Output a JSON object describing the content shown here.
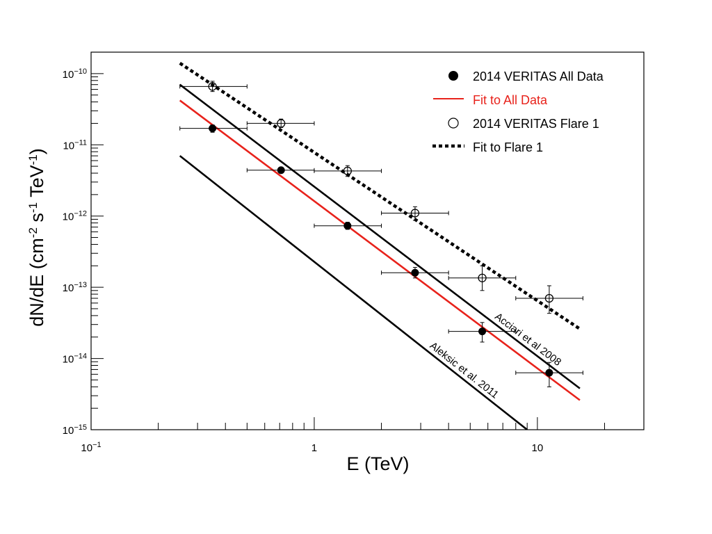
{
  "chart_data": {
    "type": "scatter",
    "title": "",
    "xlabel": "E (TeV)",
    "ylabel": {
      "base": "dN/dE (cm",
      "exp1": "-2",
      "mid1": " s",
      "exp2": "-1",
      "mid2": " TeV",
      "exp3": "-1",
      "end": ")"
    },
    "x_scale": "log",
    "y_scale": "log",
    "xlim": [
      0.1,
      30
    ],
    "ylim": [
      1e-15,
      2e-10
    ],
    "x_ticks": [
      {
        "value": 0.1,
        "base": "10",
        "exp": "−1"
      },
      {
        "value": 1,
        "base": "1",
        "exp": ""
      },
      {
        "value": 10,
        "base": "10",
        "exp": ""
      }
    ],
    "y_ticks": [
      {
        "value": 1e-10,
        "base": "10",
        "exp": "−10"
      },
      {
        "value": 1e-11,
        "base": "10",
        "exp": "−11"
      },
      {
        "value": 1e-12,
        "base": "10",
        "exp": "−12"
      },
      {
        "value": 1e-13,
        "base": "10",
        "exp": "−13"
      },
      {
        "value": 1e-14,
        "base": "10",
        "exp": "−14"
      },
      {
        "value": 1e-15,
        "base": "10",
        "exp": "−15"
      }
    ],
    "grid": false,
    "legend_position": "top-right",
    "legend": [
      {
        "label": "2014 VERITAS All Data",
        "marker": "filled-circle",
        "color": "#000000"
      },
      {
        "label": "Fit to All Data",
        "marker": "solid-line",
        "color": "#e8221b"
      },
      {
        "label": "2014 VERITAS Flare 1",
        "marker": "open-circle",
        "color": "#000000"
      },
      {
        "label": "Fit to Flare 1",
        "marker": "dotted-line",
        "color": "#000000"
      }
    ],
    "series": [
      {
        "name": "2014 VERITAS All Data",
        "kind": "points",
        "marker": "filled",
        "color": "#000000",
        "points": [
          {
            "x": 0.35,
            "y": 1.7e-11,
            "xerr": [
              0.25,
              0.5
            ],
            "yerr": [
              1.5e-11,
              1.9e-11
            ]
          },
          {
            "x": 0.71,
            "y": 4.4e-12,
            "xerr": [
              0.5,
              1.0
            ],
            "yerr": [
              4.1e-12,
              4.7e-12
            ]
          },
          {
            "x": 1.41,
            "y": 7.3e-13,
            "xerr": [
              1.0,
              2.0
            ],
            "yerr": [
              6.5e-13,
              8.2e-13
            ]
          },
          {
            "x": 2.83,
            "y": 1.6e-13,
            "xerr": [
              2.0,
              4.0
            ],
            "yerr": [
              1.35e-13,
              1.9e-13
            ]
          },
          {
            "x": 5.66,
            "y": 2.4e-14,
            "xerr": [
              4.0,
              8.0
            ],
            "yerr": [
              1.7e-14,
              3.2e-14
            ]
          },
          {
            "x": 11.3,
            "y": 6.3e-15,
            "xerr": [
              8.0,
              16.0
            ],
            "yerr": [
              4e-15,
              8.8e-15
            ]
          }
        ]
      },
      {
        "name": "2014 VERITAS Flare 1",
        "kind": "points",
        "marker": "open",
        "color": "#000000",
        "points": [
          {
            "x": 0.35,
            "y": 6.6e-11,
            "xerr": [
              0.25,
              0.5
            ],
            "yerr": [
              5.6e-11,
              7.8e-11
            ]
          },
          {
            "x": 0.71,
            "y": 2e-11,
            "xerr": [
              0.5,
              1.0
            ],
            "yerr": [
              1.75e-11,
              2.3e-11
            ]
          },
          {
            "x": 1.41,
            "y": 4.3e-12,
            "xerr": [
              1.0,
              2.0
            ],
            "yerr": [
              3.6e-12,
              5.1e-12
            ]
          },
          {
            "x": 2.83,
            "y": 1.1e-12,
            "xerr": [
              2.0,
              4.0
            ],
            "yerr": [
              8.7e-13,
              1.35e-12
            ]
          },
          {
            "x": 5.66,
            "y": 1.35e-13,
            "xerr": [
              4.0,
              8.0
            ],
            "yerr": [
              9e-14,
              2e-13
            ]
          },
          {
            "x": 11.3,
            "y": 7e-14,
            "xerr": [
              8.0,
              16.0
            ],
            "yerr": [
              4.3e-14,
              1.05e-13
            ]
          }
        ]
      },
      {
        "name": "Fit to All Data",
        "kind": "line",
        "style": "solid",
        "color": "#e8221b",
        "x": [
          0.25,
          15.5
        ],
        "y": [
          4.2e-11,
          2.6e-15
        ]
      },
      {
        "name": "Fit to Flare 1",
        "kind": "line",
        "style": "dotted",
        "color": "#000000",
        "x": [
          0.25,
          15.5
        ],
        "y": [
          1.4e-10,
          2.6e-14
        ]
      },
      {
        "name": "Acciari et al 2008",
        "kind": "line",
        "style": "solid",
        "color": "#000000",
        "x": [
          0.25,
          15.5
        ],
        "y": [
          7e-11,
          3.8e-15
        ]
      },
      {
        "name": "Aleksic et al. 2011",
        "kind": "line",
        "style": "solid",
        "color": "#000000",
        "x": [
          0.25,
          9.0
        ],
        "y": [
          7e-12,
          1e-15
        ]
      }
    ],
    "annotations": [
      {
        "text": "Acciari et al 2008",
        "series": "Acciari et al 2008",
        "at_x": 8.9
      },
      {
        "text": "Aleksic et al. 2011",
        "series": "Aleksic et al. 2011",
        "at_x": 4.6
      }
    ]
  }
}
